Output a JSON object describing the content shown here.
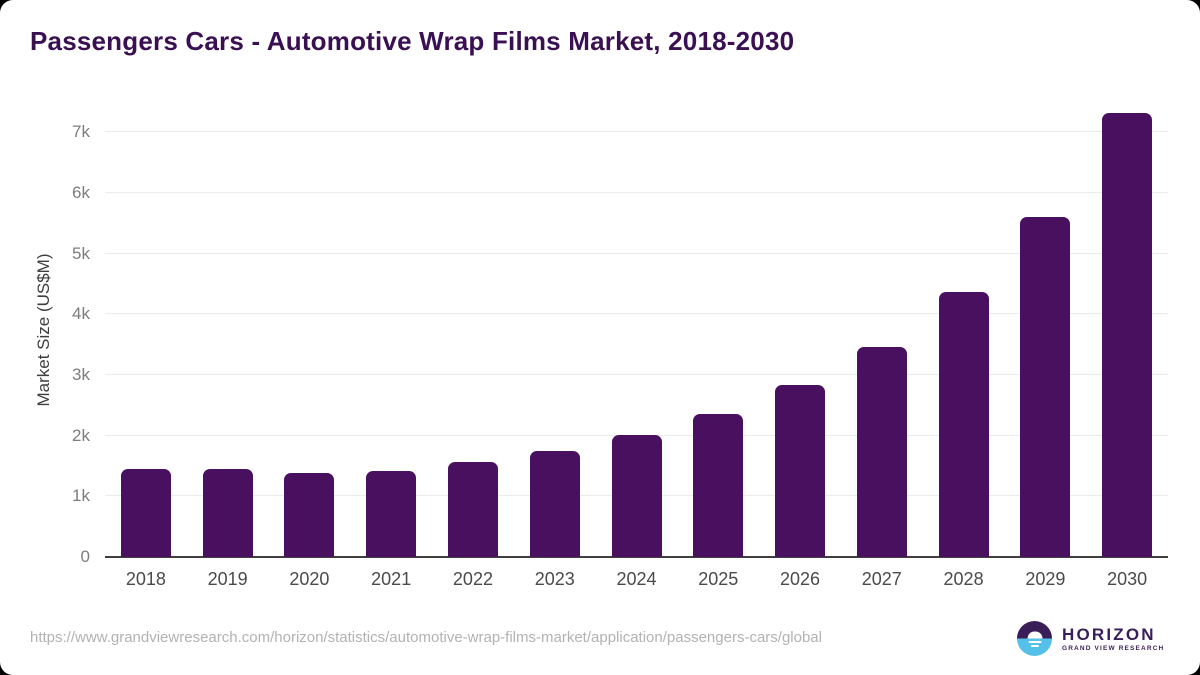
{
  "title": "Passengers Cars - Automotive Wrap Films Market, 2018-2030",
  "source_url": "https://www.grandviewresearch.com/horizon/statistics/automotive-wrap-films-market/application/passengers-cars/global",
  "logo": {
    "name": "HORIZON",
    "subtext": "GRAND VIEW RESEARCH"
  },
  "colors": {
    "bar": "#4A1060",
    "title": "#3A1053",
    "gridline": "#ebebeb",
    "axis_line": "#3f3f3f",
    "logo_purple": "#3A1E5A",
    "logo_blue": "#56C1E8"
  },
  "chart_data": {
    "type": "bar",
    "title": "Passengers Cars - Automotive Wrap Films Market, 2018-2030",
    "categories": [
      "2018",
      "2019",
      "2020",
      "2021",
      "2022",
      "2023",
      "2024",
      "2025",
      "2026",
      "2027",
      "2028",
      "2029",
      "2030"
    ],
    "values": [
      1450,
      1455,
      1380,
      1425,
      1570,
      1750,
      2010,
      2360,
      2840,
      3460,
      4360,
      5600,
      7310
    ],
    "xlabel": "",
    "ylabel": "Market Size (US$M)",
    "ylim": [
      0,
      7500
    ],
    "yticks": [
      "0",
      "1k",
      "2k",
      "3k",
      "4k",
      "5k",
      "6k",
      "7k"
    ],
    "grid": true,
    "legend": "none",
    "bar_color": "#4A1060"
  }
}
